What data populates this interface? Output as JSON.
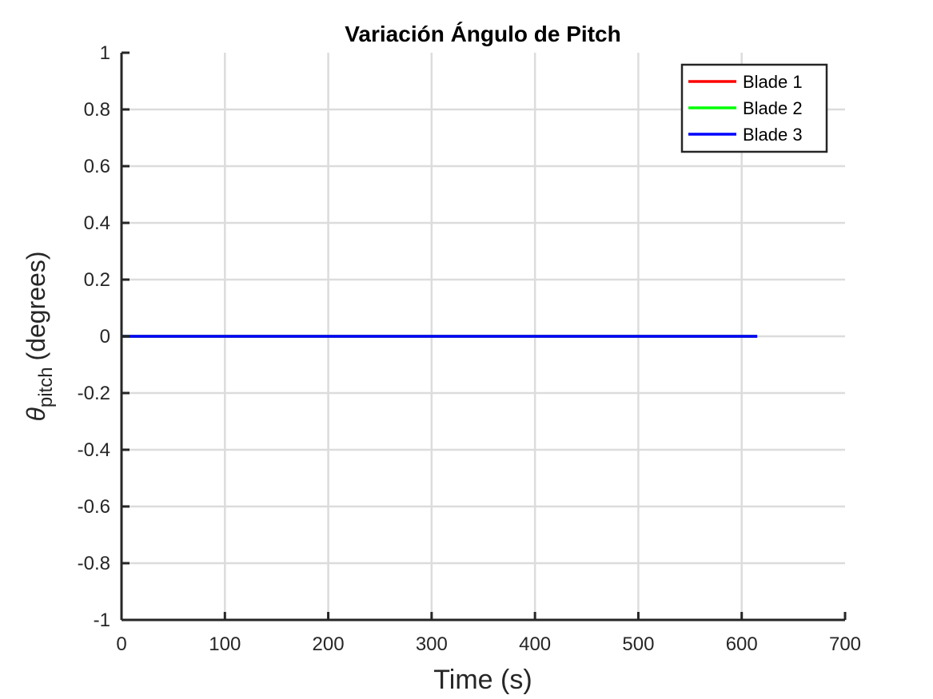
{
  "chart_data": {
    "type": "line",
    "title": "Variación Ángulo de Pitch",
    "xlabel": "Time (s)",
    "ylabel_symbol": "θ",
    "ylabel_subscript": "pitch",
    "ylabel_unit": "(degrees)",
    "xlim": [
      0,
      700
    ],
    "ylim": [
      -1,
      1
    ],
    "xticks": [
      0,
      100,
      200,
      300,
      400,
      500,
      600,
      700
    ],
    "yticks": [
      -1,
      -0.8,
      -0.6,
      -0.4,
      -0.2,
      0,
      0.2,
      0.4,
      0.6,
      0.8,
      1
    ],
    "xtick_labels": [
      "0",
      "100",
      "200",
      "300",
      "400",
      "500",
      "600",
      "700"
    ],
    "ytick_labels": [
      "-1",
      "-0.8",
      "-0.6",
      "-0.4",
      "-0.2",
      "0",
      "0.2",
      "0.4",
      "0.6",
      "0.8",
      "1"
    ],
    "grid": true,
    "legend_position": "top-right",
    "series": [
      {
        "name": "Blade 1",
        "color": "#ff0000",
        "x": [
          0,
          615
        ],
        "y": [
          0,
          0
        ]
      },
      {
        "name": "Blade 2",
        "color": "#00ff00",
        "x": [
          0,
          615
        ],
        "y": [
          0,
          0
        ]
      },
      {
        "name": "Blade 3",
        "color": "#0000ff",
        "x": [
          0,
          615
        ],
        "y": [
          0,
          0
        ]
      }
    ]
  }
}
